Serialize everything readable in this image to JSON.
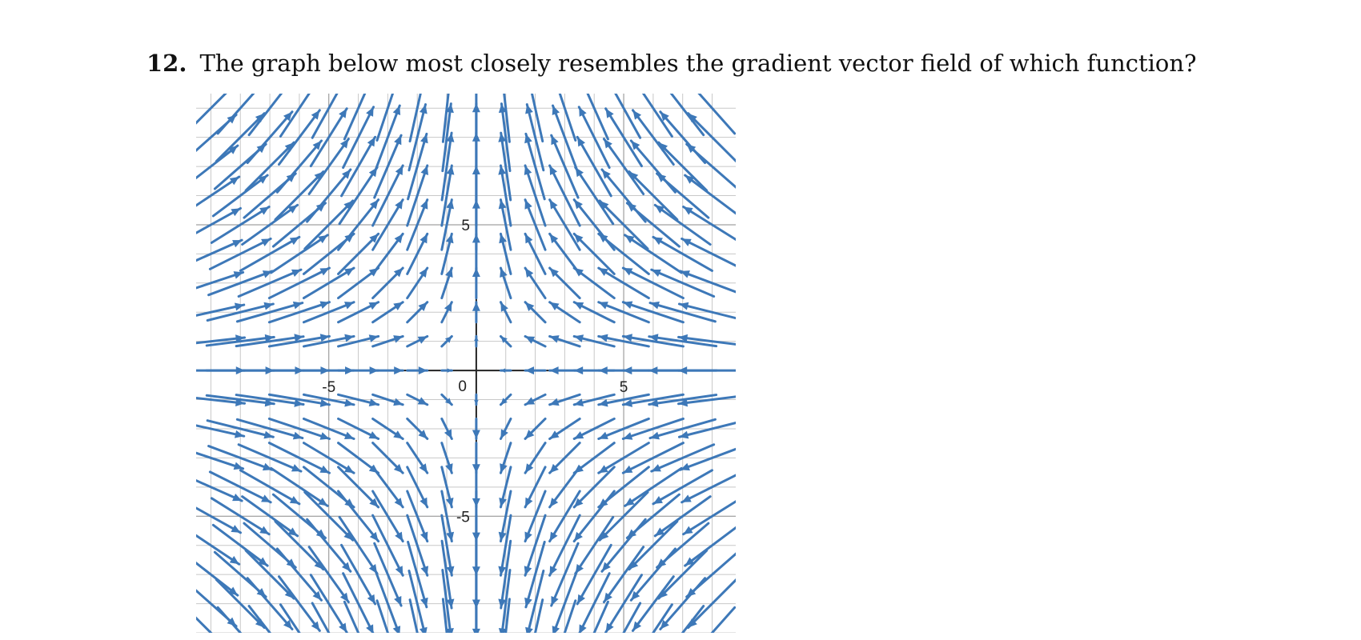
{
  "question": {
    "number": "12.",
    "text": "The graph below most closely resembles the gradient vector field of which function?"
  },
  "chart_data": {
    "type": "vector-field",
    "xlim": [
      -9.5,
      8.8
    ],
    "ylim": [
      -9.0,
      9.5
    ],
    "grid_step": 1,
    "grid": true,
    "arrow_spacing": 1,
    "origin_label": "0",
    "x_tick_labels": [
      {
        "value": -5,
        "label": "-5"
      },
      {
        "value": 5,
        "label": "5"
      }
    ],
    "y_tick_labels": [
      {
        "value": 5,
        "label": "5"
      },
      {
        "value": -5,
        "label": "-5"
      }
    ],
    "field": {
      "u": "-x",
      "v": "y"
    },
    "arrow_color": "#3d78b8",
    "grid_color": "#c8c8c8",
    "axis_color": "#222222"
  }
}
